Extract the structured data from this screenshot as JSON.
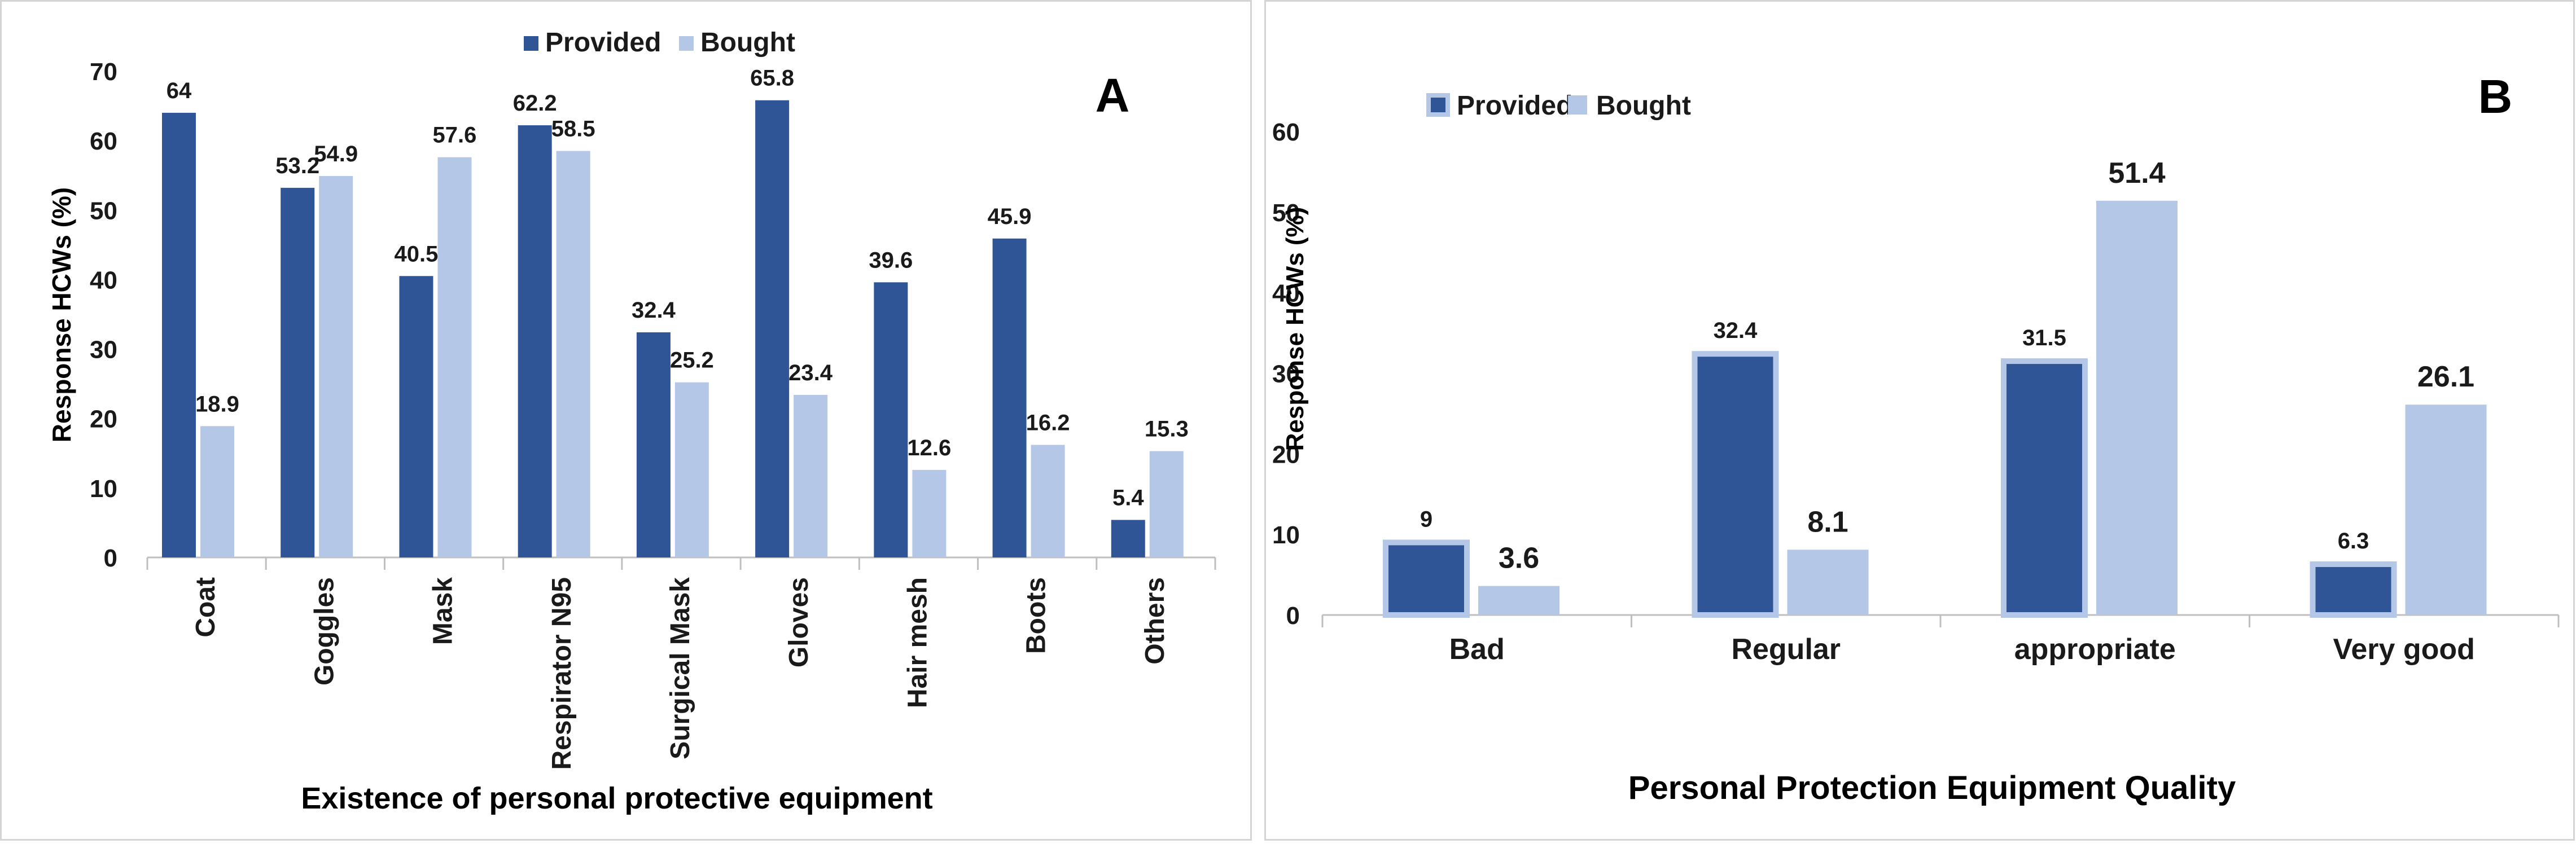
{
  "colors": {
    "provided": "#2f5597",
    "bought": "#b4c7e7",
    "axis": "#bfbfbf"
  },
  "chart_data": [
    {
      "type": "bar",
      "letter": "A",
      "categories": [
        "Coat",
        "Goggles",
        "Mask",
        "Respirator N95",
        "Surgical Mask",
        "Gloves",
        "Hair mesh",
        "Boots",
        "Others"
      ],
      "series": [
        {
          "name": "Provided",
          "values": [
            64,
            53.2,
            40.5,
            62.2,
            32.4,
            65.8,
            39.6,
            45.9,
            5.4
          ]
        },
        {
          "name": "Bought",
          "values": [
            18.9,
            54.9,
            57.6,
            58.5,
            25.2,
            23.4,
            12.6,
            16.2,
            15.3
          ]
        }
      ],
      "xlabel": "Existence of personal protective equipment",
      "ylabel": "Response HCWs (%)",
      "ylim": [
        0,
        70
      ],
      "yticks": [
        0,
        10,
        20,
        30,
        40,
        50,
        60,
        70
      ],
      "legend_position": "top-center",
      "grid": false
    },
    {
      "type": "bar",
      "letter": "B",
      "categories": [
        "Bad",
        "Regular",
        "appropriate",
        "Very good"
      ],
      "series": [
        {
          "name": "Provided",
          "values": [
            9,
            32.4,
            31.5,
            6.3
          ]
        },
        {
          "name": "Bought",
          "values": [
            3.6,
            8.1,
            51.4,
            26.1
          ]
        }
      ],
      "xlabel": "Personal Protection Equipment  Quality",
      "ylabel": "Response HCWs (%)",
      "ylim": [
        0,
        60
      ],
      "yticks": [
        0,
        10,
        20,
        30,
        40,
        50,
        60
      ],
      "legend_position": "top-left",
      "grid": false
    }
  ]
}
